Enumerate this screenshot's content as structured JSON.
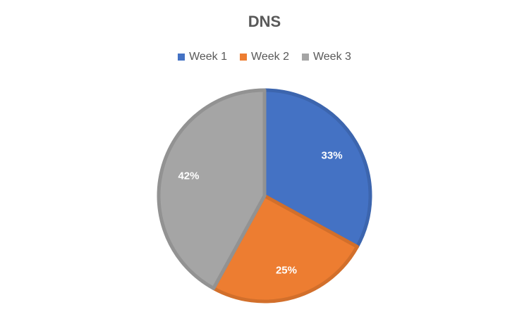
{
  "chart_data": {
    "type": "pie",
    "title": "DNS",
    "categories": [
      "Week 1",
      "Week 2",
      "Week 3"
    ],
    "values": [
      33,
      25,
      42
    ],
    "labels": [
      "33%",
      "25%",
      "42%"
    ],
    "colors": [
      "#4472C4",
      "#ED7D31",
      "#A5A5A5"
    ],
    "border_colors": [
      "#3C65AE",
      "#D26F2B",
      "#929292"
    ],
    "legend_position": "top"
  }
}
